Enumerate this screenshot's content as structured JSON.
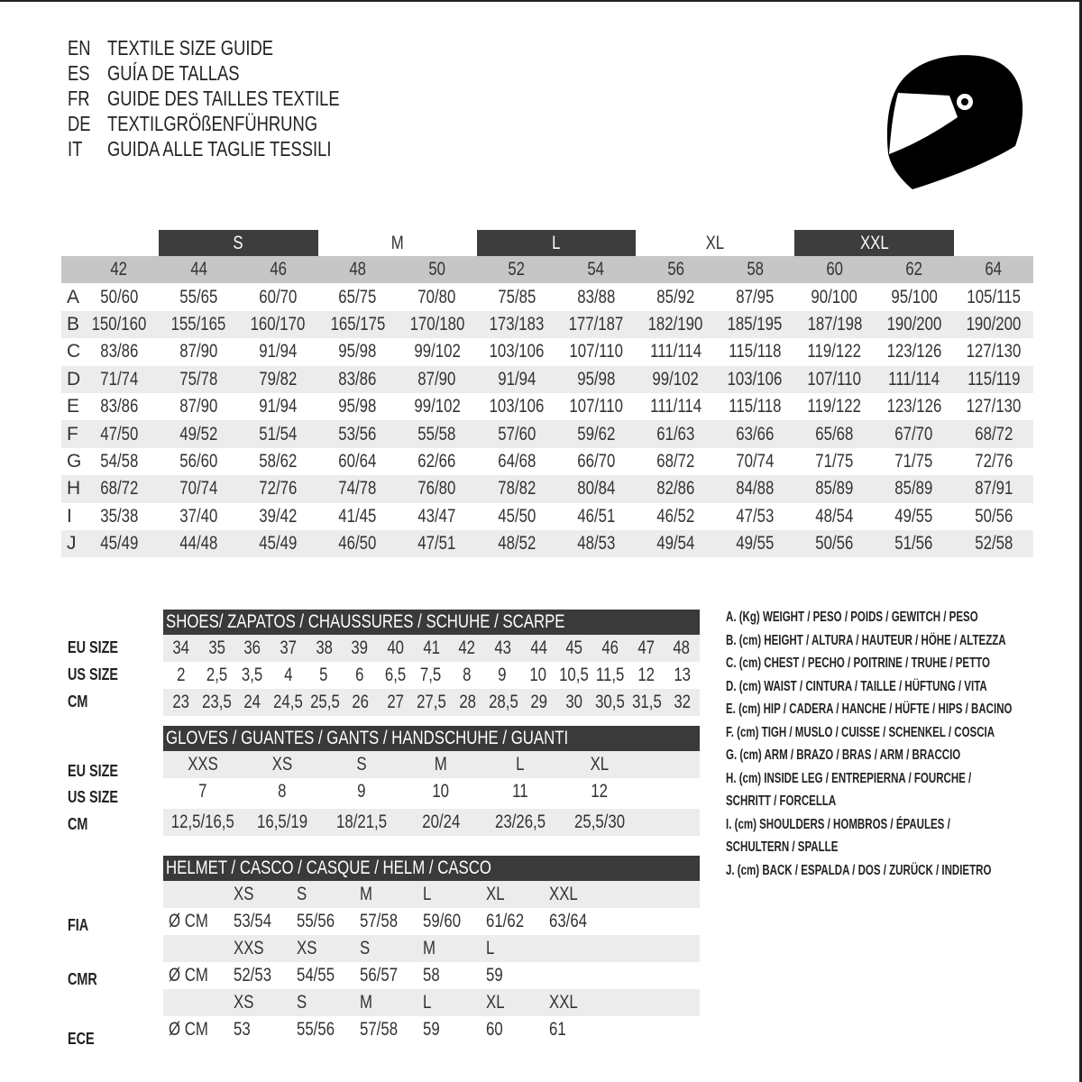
{
  "titles": [
    {
      "code": "EN",
      "text": "TEXTILE SIZE GUIDE"
    },
    {
      "code": "ES",
      "text": "GUÍA DE TALLAS"
    },
    {
      "code": "FR",
      "text": "GUIDE DES TAILLES TEXTILE"
    },
    {
      "code": "DE",
      "text": "TEXTILGRÖßENFÜHRUNG"
    },
    {
      "code": "IT",
      "text": "GUIDA ALLE TAGLIE TESSILI"
    }
  ],
  "icon": "helmet-icon",
  "colors": {
    "dark_band": "#3d3d3d",
    "header_gray": "#c6c6c6",
    "stripe": "#ececec"
  },
  "textile": {
    "size_groups": [
      {
        "label": "S",
        "style": "dark"
      },
      {
        "label": "M",
        "style": "light"
      },
      {
        "label": "L",
        "style": "dark"
      },
      {
        "label": "XL",
        "style": "light"
      },
      {
        "label": "XXL",
        "style": "dark"
      }
    ],
    "eu_sizes": [
      "42",
      "44",
      "46",
      "48",
      "50",
      "52",
      "54",
      "56",
      "58",
      "60",
      "62",
      "64"
    ],
    "rows": [
      {
        "label": "A",
        "values": [
          "50/60",
          "55/65",
          "60/70",
          "65/75",
          "70/80",
          "75/85",
          "83/88",
          "85/92",
          "87/95",
          "90/100",
          "95/100",
          "105/115"
        ]
      },
      {
        "label": "B",
        "values": [
          "150/160",
          "155/165",
          "160/170",
          "165/175",
          "170/180",
          "173/183",
          "177/187",
          "182/190",
          "185/195",
          "187/198",
          "190/200",
          "190/200"
        ]
      },
      {
        "label": "C",
        "values": [
          "83/86",
          "87/90",
          "91/94",
          "95/98",
          "99/102",
          "103/106",
          "107/110",
          "111/114",
          "115/118",
          "119/122",
          "123/126",
          "127/130"
        ]
      },
      {
        "label": "D",
        "values": [
          "71/74",
          "75/78",
          "79/82",
          "83/86",
          "87/90",
          "91/94",
          "95/98",
          "99/102",
          "103/106",
          "107/110",
          "111/114",
          "115/119"
        ]
      },
      {
        "label": "E",
        "values": [
          "83/86",
          "87/90",
          "91/94",
          "95/98",
          "99/102",
          "103/106",
          "107/110",
          "111/114",
          "115/118",
          "119/122",
          "123/126",
          "127/130"
        ]
      },
      {
        "label": "F",
        "values": [
          "47/50",
          "49/52",
          "51/54",
          "53/56",
          "55/58",
          "57/60",
          "59/62",
          "61/63",
          "63/66",
          "65/68",
          "67/70",
          "68/72"
        ]
      },
      {
        "label": "G",
        "values": [
          "54/58",
          "56/60",
          "58/62",
          "60/64",
          "62/66",
          "64/68",
          "66/70",
          "68/72",
          "70/74",
          "71/75",
          "71/75",
          "72/76"
        ]
      },
      {
        "label": "H",
        "values": [
          "68/72",
          "70/74",
          "72/76",
          "74/78",
          "76/80",
          "78/82",
          "80/84",
          "82/86",
          "84/88",
          "85/89",
          "85/89",
          "87/91"
        ]
      },
      {
        "label": "I",
        "values": [
          "35/38",
          "37/40",
          "39/42",
          "41/45",
          "43/47",
          "45/50",
          "46/51",
          "46/52",
          "47/53",
          "48/54",
          "49/55",
          "50/56"
        ]
      },
      {
        "label": "J",
        "values": [
          "45/49",
          "44/48",
          "45/49",
          "46/50",
          "47/51",
          "48/52",
          "48/53",
          "49/54",
          "49/55",
          "50/56",
          "51/56",
          "52/58"
        ]
      }
    ]
  },
  "shoes": {
    "title": "SHOES/ ZAPATOS / CHAUSSURES / SCHUHE / SCARPE",
    "rows": [
      {
        "label": "EU SIZE",
        "values": [
          "34",
          "35",
          "36",
          "37",
          "38",
          "39",
          "40",
          "41",
          "42",
          "43",
          "44",
          "45",
          "46",
          "47",
          "48"
        ]
      },
      {
        "label": "US SIZE",
        "values": [
          "2",
          "2,5",
          "3,5",
          "4",
          "5",
          "6",
          "6,5",
          "7,5",
          "8",
          "9",
          "10",
          "10,5",
          "11,5",
          "12",
          "13"
        ]
      },
      {
        "label": "CM",
        "values": [
          "23",
          "23,5",
          "24",
          "24,5",
          "25,5",
          "26",
          "27",
          "27,5",
          "28",
          "28,5",
          "29",
          "30",
          "30,5",
          "31,5",
          "32"
        ]
      }
    ]
  },
  "gloves": {
    "title": "GLOVES / GUANTES / GANTS / HANDSCHUHE / GUANTI",
    "rows": [
      {
        "label": "EU SIZE",
        "values": [
          "XXS",
          "XS",
          "S",
          "M",
          "L",
          "XL"
        ]
      },
      {
        "label": "US SIZE",
        "values": [
          "7",
          "8",
          "9",
          "10",
          "11",
          "12"
        ]
      },
      {
        "label": "CM",
        "values": [
          "12,5/16,5",
          "16,5/19",
          "18/21,5",
          "20/24",
          "23/26,5",
          "25,5/30"
        ]
      }
    ]
  },
  "helmet": {
    "title": "HELMET / CASCO / CASQUE / HELM / CASCO",
    "unit": "Ø CM",
    "standards": [
      {
        "label": "FIA",
        "sizes": [
          "XS",
          "S",
          "M",
          "L",
          "XL",
          "XXL"
        ],
        "values": [
          "53/54",
          "55/56",
          "57/58",
          "59/60",
          "61/62",
          "63/64"
        ]
      },
      {
        "label": "CMR",
        "sizes": [
          "XXS",
          "XS",
          "S",
          "M",
          "L",
          ""
        ],
        "values": [
          "52/53",
          "54/55",
          "56/57",
          "58",
          "59",
          ""
        ]
      },
      {
        "label": "ECE",
        "sizes": [
          "XS",
          "S",
          "M",
          "L",
          "XL",
          "XXL"
        ],
        "values": [
          "53",
          "55/56",
          "57/58",
          "59",
          "60",
          "61"
        ]
      }
    ]
  },
  "legend": [
    "A. (Kg) WEIGHT / PESO / POIDS / GEWITCH / PESO",
    "B. (cm) HEIGHT / ALTURA / HAUTEUR / HÖHE / ALTEZZA",
    "C. (cm) CHEST / PECHO / POITRINE / TRUHE / PETTO",
    "D. (cm) WAIST / CINTURA / TAILLE / HÜFTUNG / VITA",
    "E. (cm) HIP / CADERA / HANCHE / HÜFTE / HIPS /  BACINO",
    "F.  (cm) TIGH / MUSLO / CUISSE / SCHENKEL / COSCIA",
    "G. (cm) ARM  / BRAZO / BRAS / ARM / BRACCIO",
    "H. (cm) INSIDE LEG / ENTREPIERNA / FOURCHE /",
    "SCHRITT / FORCELLA",
    "I.  (cm) SHOULDERS / HOMBROS / ÉPAULES /",
    "SCHULTERN / SPALLE",
    "J. (cm) BACK / ESPALDA / DOS / ZURÜCK / INDIETRO"
  ]
}
